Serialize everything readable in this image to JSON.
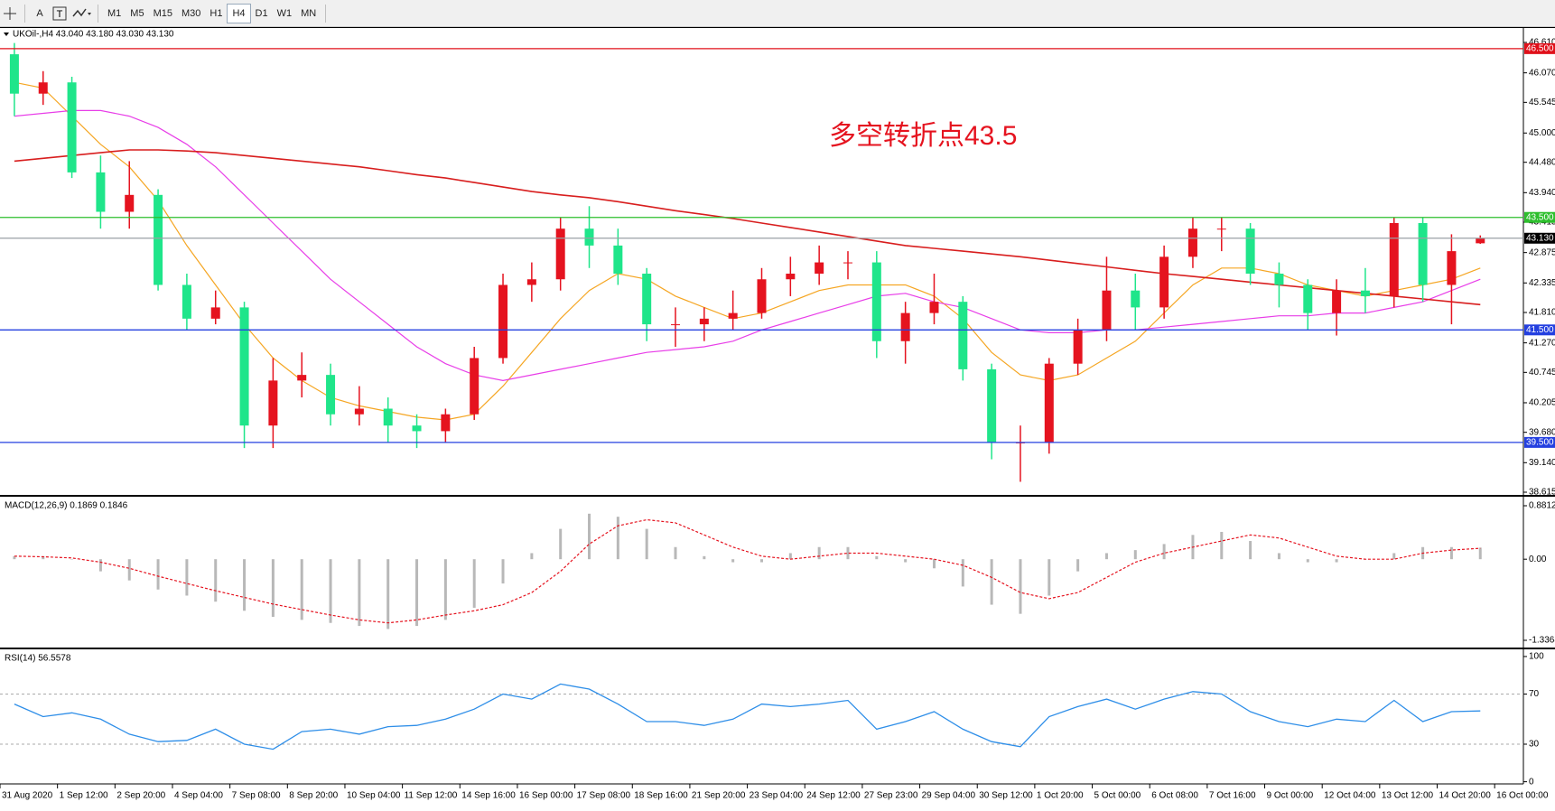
{
  "toolbar": {
    "tools": [
      "A"
    ],
    "timeframes": [
      "M1",
      "M5",
      "M15",
      "M30",
      "H1",
      "H4",
      "D1",
      "W1",
      "MN"
    ],
    "active": 5
  },
  "chart_data": [
    {
      "type": "candlestick",
      "title": "UKOil-,H4 43.040 43.180 43.030 43.130",
      "open": [
        46.4,
        45.7,
        45.9,
        44.3,
        43.6,
        43.9,
        42.3,
        41.7,
        41.9,
        39.8,
        40.6,
        40.7,
        40.0,
        40.1,
        39.8,
        39.7,
        40.0,
        41.0,
        42.3,
        42.4,
        43.3,
        43.0,
        42.5,
        41.6,
        41.6,
        41.7,
        41.8,
        42.4,
        42.5,
        42.7,
        42.7,
        41.3,
        41.8,
        42.0,
        40.8,
        39.5,
        39.5,
        40.9,
        41.5,
        42.2,
        41.9,
        42.8,
        43.3,
        43.3,
        42.5,
        42.3,
        41.8,
        42.2,
        42.1,
        43.4,
        42.3,
        43.04
      ],
      "high": [
        46.6,
        46.1,
        46.0,
        44.6,
        44.5,
        44.0,
        42.5,
        42.2,
        42.0,
        41.0,
        41.1,
        40.9,
        40.5,
        40.3,
        40.0,
        40.1,
        41.2,
        42.5,
        42.7,
        43.5,
        43.7,
        43.3,
        42.6,
        41.9,
        41.9,
        42.2,
        42.6,
        42.8,
        43.0,
        42.9,
        42.9,
        42.0,
        42.5,
        42.1,
        40.9,
        39.8,
        41.0,
        41.7,
        42.8,
        42.5,
        43.0,
        43.5,
        43.5,
        43.4,
        42.7,
        42.4,
        42.4,
        42.6,
        43.5,
        43.5,
        43.2,
        43.18
      ],
      "low": [
        45.3,
        45.5,
        44.2,
        43.3,
        43.3,
        42.2,
        41.5,
        41.6,
        39.4,
        39.4,
        40.3,
        39.8,
        39.8,
        39.5,
        39.4,
        39.5,
        39.9,
        40.9,
        42.0,
        42.2,
        42.6,
        42.3,
        41.3,
        41.2,
        41.3,
        41.5,
        41.7,
        42.1,
        42.3,
        42.4,
        41.0,
        40.9,
        41.6,
        40.6,
        39.2,
        38.8,
        39.3,
        40.7,
        41.3,
        41.5,
        41.7,
        42.6,
        42.9,
        42.3,
        41.9,
        41.5,
        41.4,
        41.8,
        41.9,
        42.0,
        41.6,
        43.03
      ],
      "close": [
        45.7,
        45.9,
        44.3,
        43.6,
        43.9,
        42.3,
        41.7,
        41.9,
        39.8,
        40.6,
        40.7,
        40.0,
        40.1,
        39.8,
        39.7,
        40.0,
        41.0,
        42.3,
        42.4,
        43.3,
        43.0,
        42.5,
        41.6,
        41.6,
        41.7,
        41.8,
        42.4,
        42.5,
        42.7,
        42.7,
        41.3,
        41.8,
        42.0,
        40.8,
        39.5,
        39.5,
        40.9,
        41.5,
        42.2,
        41.9,
        42.8,
        43.3,
        43.3,
        42.5,
        42.3,
        41.8,
        42.2,
        42.1,
        43.4,
        42.3,
        42.9,
        43.13
      ],
      "up_color": "#e5131f",
      "down_color": "#1fe58a",
      "series": [
        {
          "color": "#f5a623",
          "values": [
            45.9,
            45.8,
            45.3,
            44.8,
            44.4,
            43.8,
            43.0,
            42.3,
            41.6,
            41.0,
            40.6,
            40.3,
            40.15,
            40.05,
            39.95,
            39.9,
            40.0,
            40.5,
            41.1,
            41.7,
            42.2,
            42.5,
            42.4,
            42.1,
            41.9,
            41.7,
            41.8,
            42.0,
            42.2,
            42.3,
            42.3,
            42.3,
            42.1,
            41.7,
            41.1,
            40.7,
            40.6,
            40.7,
            41.0,
            41.3,
            41.8,
            42.3,
            42.6,
            42.6,
            42.5,
            42.3,
            42.2,
            42.1,
            42.2,
            42.3,
            42.4,
            42.6
          ]
        },
        {
          "color": "#e83ee8",
          "values": [
            45.3,
            45.35,
            45.4,
            45.4,
            45.3,
            45.1,
            44.8,
            44.4,
            43.9,
            43.4,
            42.9,
            42.4,
            42.0,
            41.6,
            41.2,
            40.9,
            40.7,
            40.6,
            40.7,
            40.8,
            40.9,
            41.0,
            41.1,
            41.15,
            41.2,
            41.3,
            41.5,
            41.65,
            41.8,
            41.95,
            42.1,
            42.15,
            42.0,
            41.9,
            41.7,
            41.5,
            41.45,
            41.45,
            41.5,
            41.5,
            41.55,
            41.6,
            41.65,
            41.7,
            41.75,
            41.75,
            41.8,
            41.8,
            41.9,
            42.0,
            42.2,
            42.4
          ]
        },
        {
          "color": "#d81e1e",
          "values": [
            44.5,
            44.55,
            44.6,
            44.65,
            44.7,
            44.7,
            44.68,
            44.65,
            44.6,
            44.55,
            44.5,
            44.45,
            44.4,
            44.33,
            44.26,
            44.2,
            44.12,
            44.04,
            43.96,
            43.9,
            43.85,
            43.78,
            43.7,
            43.62,
            43.55,
            43.48,
            43.4,
            43.32,
            43.24,
            43.16,
            43.08,
            43.0,
            42.95,
            42.9,
            42.85,
            42.8,
            42.74,
            42.68,
            42.62,
            42.56,
            42.5,
            42.45,
            42.4,
            42.35,
            42.3,
            42.25,
            42.2,
            42.15,
            42.1,
            42.05,
            42.0,
            41.95
          ]
        }
      ],
      "levels": [
        {
          "value": 46.5,
          "label": "46.500",
          "color": "#e0101a"
        },
        {
          "value": 43.5,
          "label": "43.500",
          "color": "#2dbf2d"
        },
        {
          "value": 43.13,
          "label": "43.130",
          "color": "#9aa0a6"
        },
        {
          "value": 41.5,
          "label": "41.500",
          "color": "#2440e0"
        },
        {
          "value": 39.5,
          "label": "39.500",
          "color": "#2440e0"
        }
      ],
      "annotation": {
        "text": "多空转折点43.5",
        "color": "#e5131f"
      },
      "ylim": [
        38.583,
        46.867
      ],
      "yticks": [
        {
          "value": 46.61,
          "label": "46.610"
        },
        {
          "value": 46.07,
          "label": "46.070"
        },
        45.545,
        {
          "value": 45.0,
          "label": "45.000"
        },
        {
          "value": 44.48,
          "label": "44.480"
        },
        {
          "value": 43.94,
          "label": "43.940"
        },
        43.415,
        42.875,
        42.335,
        {
          "value": 41.81,
          "label": "41.810"
        },
        {
          "value": 41.27,
          "label": "41.270"
        },
        40.745,
        40.205,
        {
          "value": 39.68,
          "label": "39.680"
        },
        {
          "value": 39.14,
          "label": "39.140"
        },
        38.615
      ],
      "x_labels": [
        "31 Aug 2020",
        "1 Sep 12:00",
        "2 Sep 20:00",
        "4 Sep 04:00",
        "7 Sep 08:00",
        "8 Sep 20:00",
        "10 Sep 04:00",
        "11 Sep 12:00",
        "14 Sep 16:00",
        "16 Sep 00:00",
        "17 Sep 08:00",
        "18 Sep 16:00",
        "21 Sep 20:00",
        "23 Sep 04:00",
        "24 Sep 12:00",
        "27 Sep 23:00",
        "29 Sep 04:00",
        "30 Sep 12:00",
        "1 Oct 20:00",
        "5 Oct 00:00",
        "6 Oct 08:00",
        "7 Oct 16:00",
        "9 Oct 00:00",
        "12 Oct 04:00",
        "13 Oct 12:00",
        "14 Oct 20:00",
        "16 Oct 00:00"
      ],
      "grid": false
    },
    {
      "type": "macd",
      "title": "MACD(12,26,9) 0.1869 0.1846",
      "values": [
        0.05,
        0.05,
        0,
        -0.2,
        -0.35,
        -0.5,
        -0.6,
        -0.7,
        -0.85,
        -0.95,
        -1.0,
        -1.05,
        -1.1,
        -1.15,
        -1.1,
        -1.0,
        -0.8,
        -0.4,
        0.1,
        0.5,
        0.75,
        0.7,
        0.5,
        0.2,
        0.05,
        -0.05,
        -0.05,
        0.1,
        0.2,
        0.2,
        0.05,
        -0.05,
        -0.15,
        -0.45,
        -0.75,
        -0.9,
        -0.6,
        -0.2,
        0.1,
        0.15,
        0.25,
        0.4,
        0.45,
        0.3,
        0.1,
        -0.05,
        -0.05,
        0.0,
        0.1,
        0.2,
        0.2,
        0.19
      ],
      "color": "#b8b8b8",
      "series": [
        {
          "color": "#e5131f",
          "values": [
            0.05,
            0.04,
            0.02,
            -0.05,
            -0.15,
            -0.28,
            -0.4,
            -0.52,
            -0.63,
            -0.74,
            -0.83,
            -0.92,
            -1.0,
            -1.05,
            -1.0,
            -0.92,
            -0.85,
            -0.75,
            -0.55,
            -0.2,
            0.25,
            0.55,
            0.65,
            0.6,
            0.4,
            0.2,
            0.05,
            0.0,
            0.05,
            0.1,
            0.1,
            0.05,
            0.0,
            -0.1,
            -0.3,
            -0.55,
            -0.65,
            -0.55,
            -0.3,
            -0.05,
            0.1,
            0.2,
            0.3,
            0.4,
            0.35,
            0.2,
            0.05,
            0.0,
            0.0,
            0.1,
            0.15,
            0.18
          ]
        }
      ],
      "ylim": [
        -1.441,
        1.015
      ],
      "yticks": [
        0.8812,
        {
          "value": 0,
          "label": "0.00"
        },
        -1.3368
      ]
    },
    {
      "type": "line",
      "title": "RSI(14) 56.5578",
      "values": [
        62,
        52,
        55,
        50,
        38,
        32,
        33,
        42,
        30,
        26,
        40,
        42,
        38,
        44,
        45,
        50,
        58,
        70,
        66,
        78,
        74,
        62,
        48,
        48,
        45,
        50,
        62,
        60,
        62,
        65,
        42,
        48,
        56,
        42,
        32,
        28,
        52,
        60,
        66,
        58,
        66,
        72,
        70,
        56,
        48,
        44,
        50,
        48,
        65,
        48,
        56,
        56.5578
      ],
      "color": "#2e8ee8",
      "ylim": [
        -1,
        105
      ],
      "yticks": [
        100,
        70,
        30,
        0
      ],
      "dotted_levels": [
        70,
        30
      ]
    }
  ]
}
